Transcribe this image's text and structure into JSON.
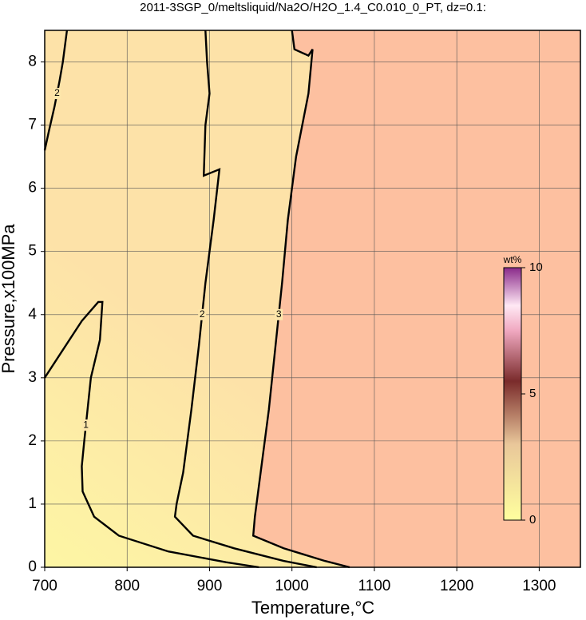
{
  "chart_data": {
    "type": "contour",
    "title": "2011-3SGP_0/meltsliquid/Na2O/H2O_1.4_C0.010_0_PT, dz=0.1:",
    "x_label": "Temperature,°C",
    "y_label": "Pressure,x100MPa",
    "xlim": [
      700,
      1350
    ],
    "ylim": [
      0,
      8.5
    ],
    "xticks": [
      700,
      800,
      900,
      1000,
      1100,
      1200,
      1300
    ],
    "yticks": [
      0,
      1,
      2,
      3,
      4,
      5,
      6,
      7,
      8
    ],
    "grid": true,
    "colorbar": {
      "label": "wt%",
      "lim": [
        0,
        10
      ],
      "ticks": [
        0,
        5,
        10
      ]
    },
    "contours": [
      {
        "level": 1,
        "x": [
          700,
          720,
          745,
          765,
          770,
          767,
          756,
          752,
          748,
          745,
          746,
          760,
          790,
          850,
          920,
          960
        ],
        "y": [
          3.0,
          3.4,
          3.9,
          4.2,
          4.2,
          3.6,
          3.0,
          2.5,
          2.0,
          1.6,
          1.2,
          0.8,
          0.5,
          0.25,
          0.08,
          0
        ]
      },
      {
        "level": 2,
        "x": [
          700,
          705,
          712,
          718,
          722,
          727
        ],
        "y": [
          6.6,
          6.9,
          7.3,
          7.7,
          8.0,
          8.5
        ]
      },
      {
        "level": 2,
        "x": [
          895,
          897,
          900,
          895,
          893,
          912,
          905,
          895,
          887,
          878,
          868,
          860,
          858,
          880,
          930,
          990,
          1030
        ],
        "y": [
          8.5,
          8.0,
          7.5,
          7.0,
          6.2,
          6.3,
          5.5,
          4.5,
          3.5,
          2.5,
          1.5,
          1.0,
          0.8,
          0.5,
          0.3,
          0.1,
          0
        ]
      },
      {
        "level": 3,
        "x": [
          1000,
          1003,
          1020,
          1025,
          1020,
          1005,
          995,
          988,
          980,
          972,
          962,
          955,
          953,
          990,
          1040,
          1070
        ],
        "y": [
          8.5,
          8.2,
          8.1,
          8.2,
          7.5,
          6.5,
          5.5,
          4.5,
          3.5,
          2.5,
          1.5,
          0.8,
          0.5,
          0.3,
          0.1,
          0
        ]
      }
    ]
  }
}
